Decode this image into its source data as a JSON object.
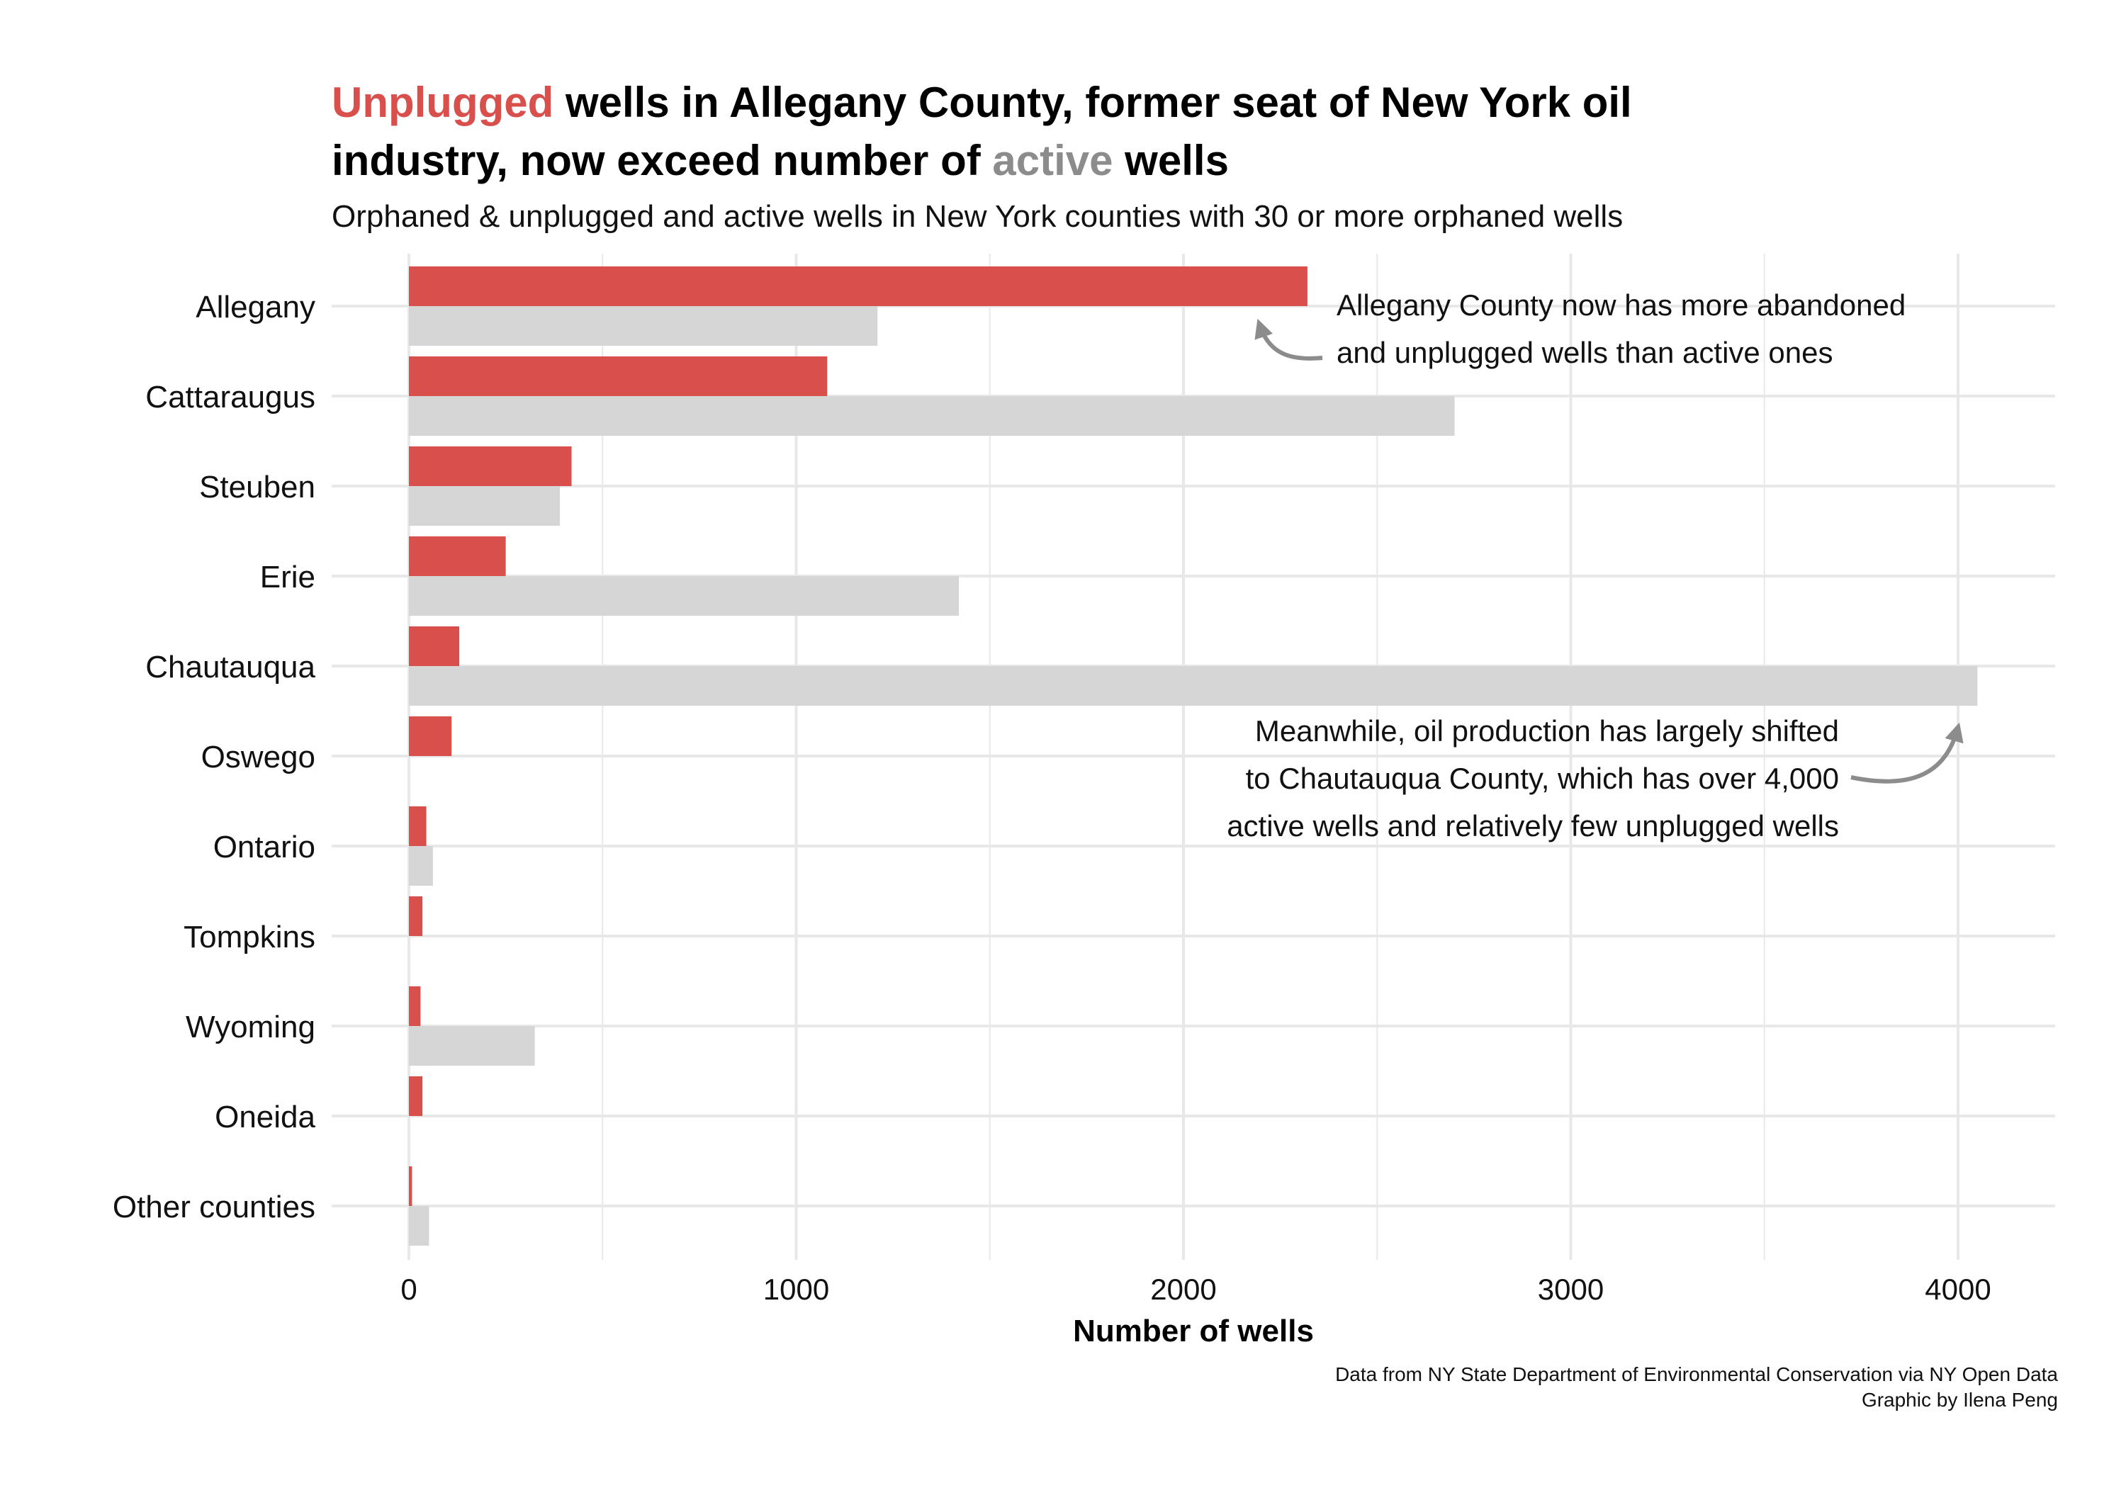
{
  "title": {
    "line1_highlight": "Unplugged",
    "line1_rest": " wells in Allegany County, former seat of New York oil",
    "line2_start": "industry, now exceed number of ",
    "line2_highlight": "active",
    "line2_end": " wells"
  },
  "subtitle": "Orphaned & unplugged and active wells in New York counties with 30 or more orphaned wells",
  "caption": {
    "source": "Data from NY State Department of Environmental Conservation via NY Open Data",
    "credit": "Graphic by Ilena Peng"
  },
  "colors": {
    "unplugged": "#d94f4c",
    "active": "#d6d6d6",
    "grid": "#e8e8e8",
    "arrow": "#8c8c8c"
  },
  "chart_data": {
    "type": "bar",
    "orientation": "horizontal",
    "xlabel": "Number of wells",
    "ylabel": "",
    "xlim": [
      -200,
      4250
    ],
    "xticks": [
      0,
      1000,
      2000,
      3000,
      4000
    ],
    "categories": [
      "Allegany",
      "Cattaraugus",
      "Steuben",
      "Erie",
      "Chautauqua",
      "Oswego",
      "Ontario",
      "Tompkins",
      "Wyoming",
      "Oneida",
      "Other counties"
    ],
    "series": [
      {
        "key": "unplugged",
        "values": [
          2320,
          1080,
          420,
          250,
          130,
          110,
          45,
          35,
          30,
          35,
          8
        ]
      },
      {
        "key": "active",
        "values": [
          1210,
          2700,
          390,
          1420,
          4050,
          0,
          62,
          0,
          325,
          0,
          52
        ]
      }
    ],
    "grid": true,
    "legend": "none",
    "annotations": [
      {
        "id": "allegany-note",
        "lines": [
          "Allegany County now has more abandoned",
          "and unplugged wells than active ones"
        ]
      },
      {
        "id": "chautauqua-note",
        "lines": [
          "Meanwhile, oil production has largely shifted",
          "to Chautauqua County, which has over 4,000",
          "active wells and relatively few unplugged wells"
        ]
      }
    ]
  }
}
